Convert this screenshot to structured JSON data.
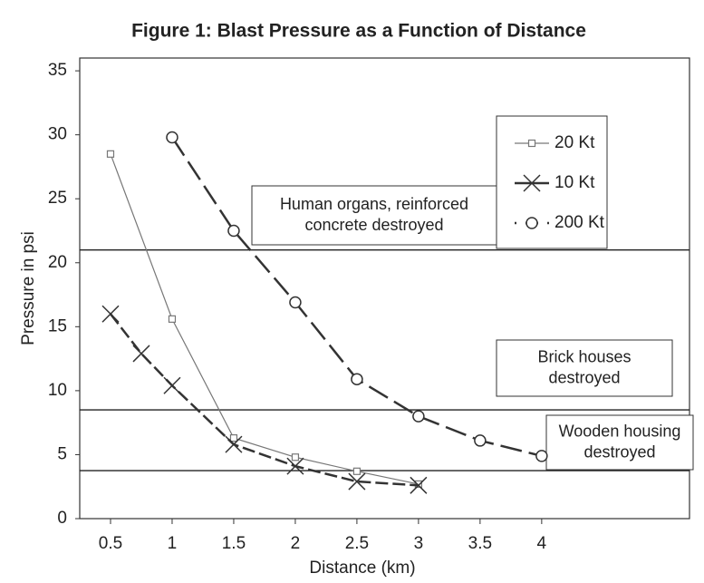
{
  "chart_data": {
    "type": "line",
    "title": "Figure 1: Blast Pressure as a Function of Distance",
    "xlabel": "Distance (km)",
    "ylabel": "Pressure in psi",
    "xlim": [
      0.25,
      5.2
    ],
    "xticks": [
      0.5,
      1,
      1.5,
      2,
      2.5,
      3,
      3.5,
      4
    ],
    "ylim": [
      0,
      36
    ],
    "yticks": [
      0,
      5,
      10,
      15,
      20,
      25,
      30,
      35
    ],
    "series": [
      {
        "name": "20 Kt",
        "color": "#777777",
        "marker": "square",
        "x": [
          0.5,
          1,
          1.5,
          2,
          2.5,
          3
        ],
        "values": [
          28.5,
          15.6,
          6.3,
          4.8,
          3.7,
          2.7
        ]
      },
      {
        "name": "10 Kt",
        "color": "#333333",
        "marker": "x",
        "x": [
          0.5,
          0.75,
          1,
          1.5,
          2,
          2.5,
          3
        ],
        "values": [
          16,
          12.9,
          10.4,
          5.8,
          4.1,
          2.9,
          2.6
        ]
      },
      {
        "name": "200 Kt",
        "color": "#333333",
        "marker": "circle",
        "x": [
          1,
          1.5,
          2,
          2.5,
          3,
          3.5,
          4
        ],
        "values": [
          29.8,
          22.5,
          16.9,
          10.9,
          8,
          6.1,
          4.9
        ]
      }
    ],
    "threshold_lines": [
      {
        "value": 21,
        "label": [
          "Human organs, reinforced",
          "concrete destroyed"
        ]
      },
      {
        "value": 8.5,
        "label": [
          "Brick houses",
          "destroyed"
        ]
      },
      {
        "value": 3.75,
        "label": [
          "Wooden housing",
          "destroyed"
        ]
      }
    ]
  }
}
